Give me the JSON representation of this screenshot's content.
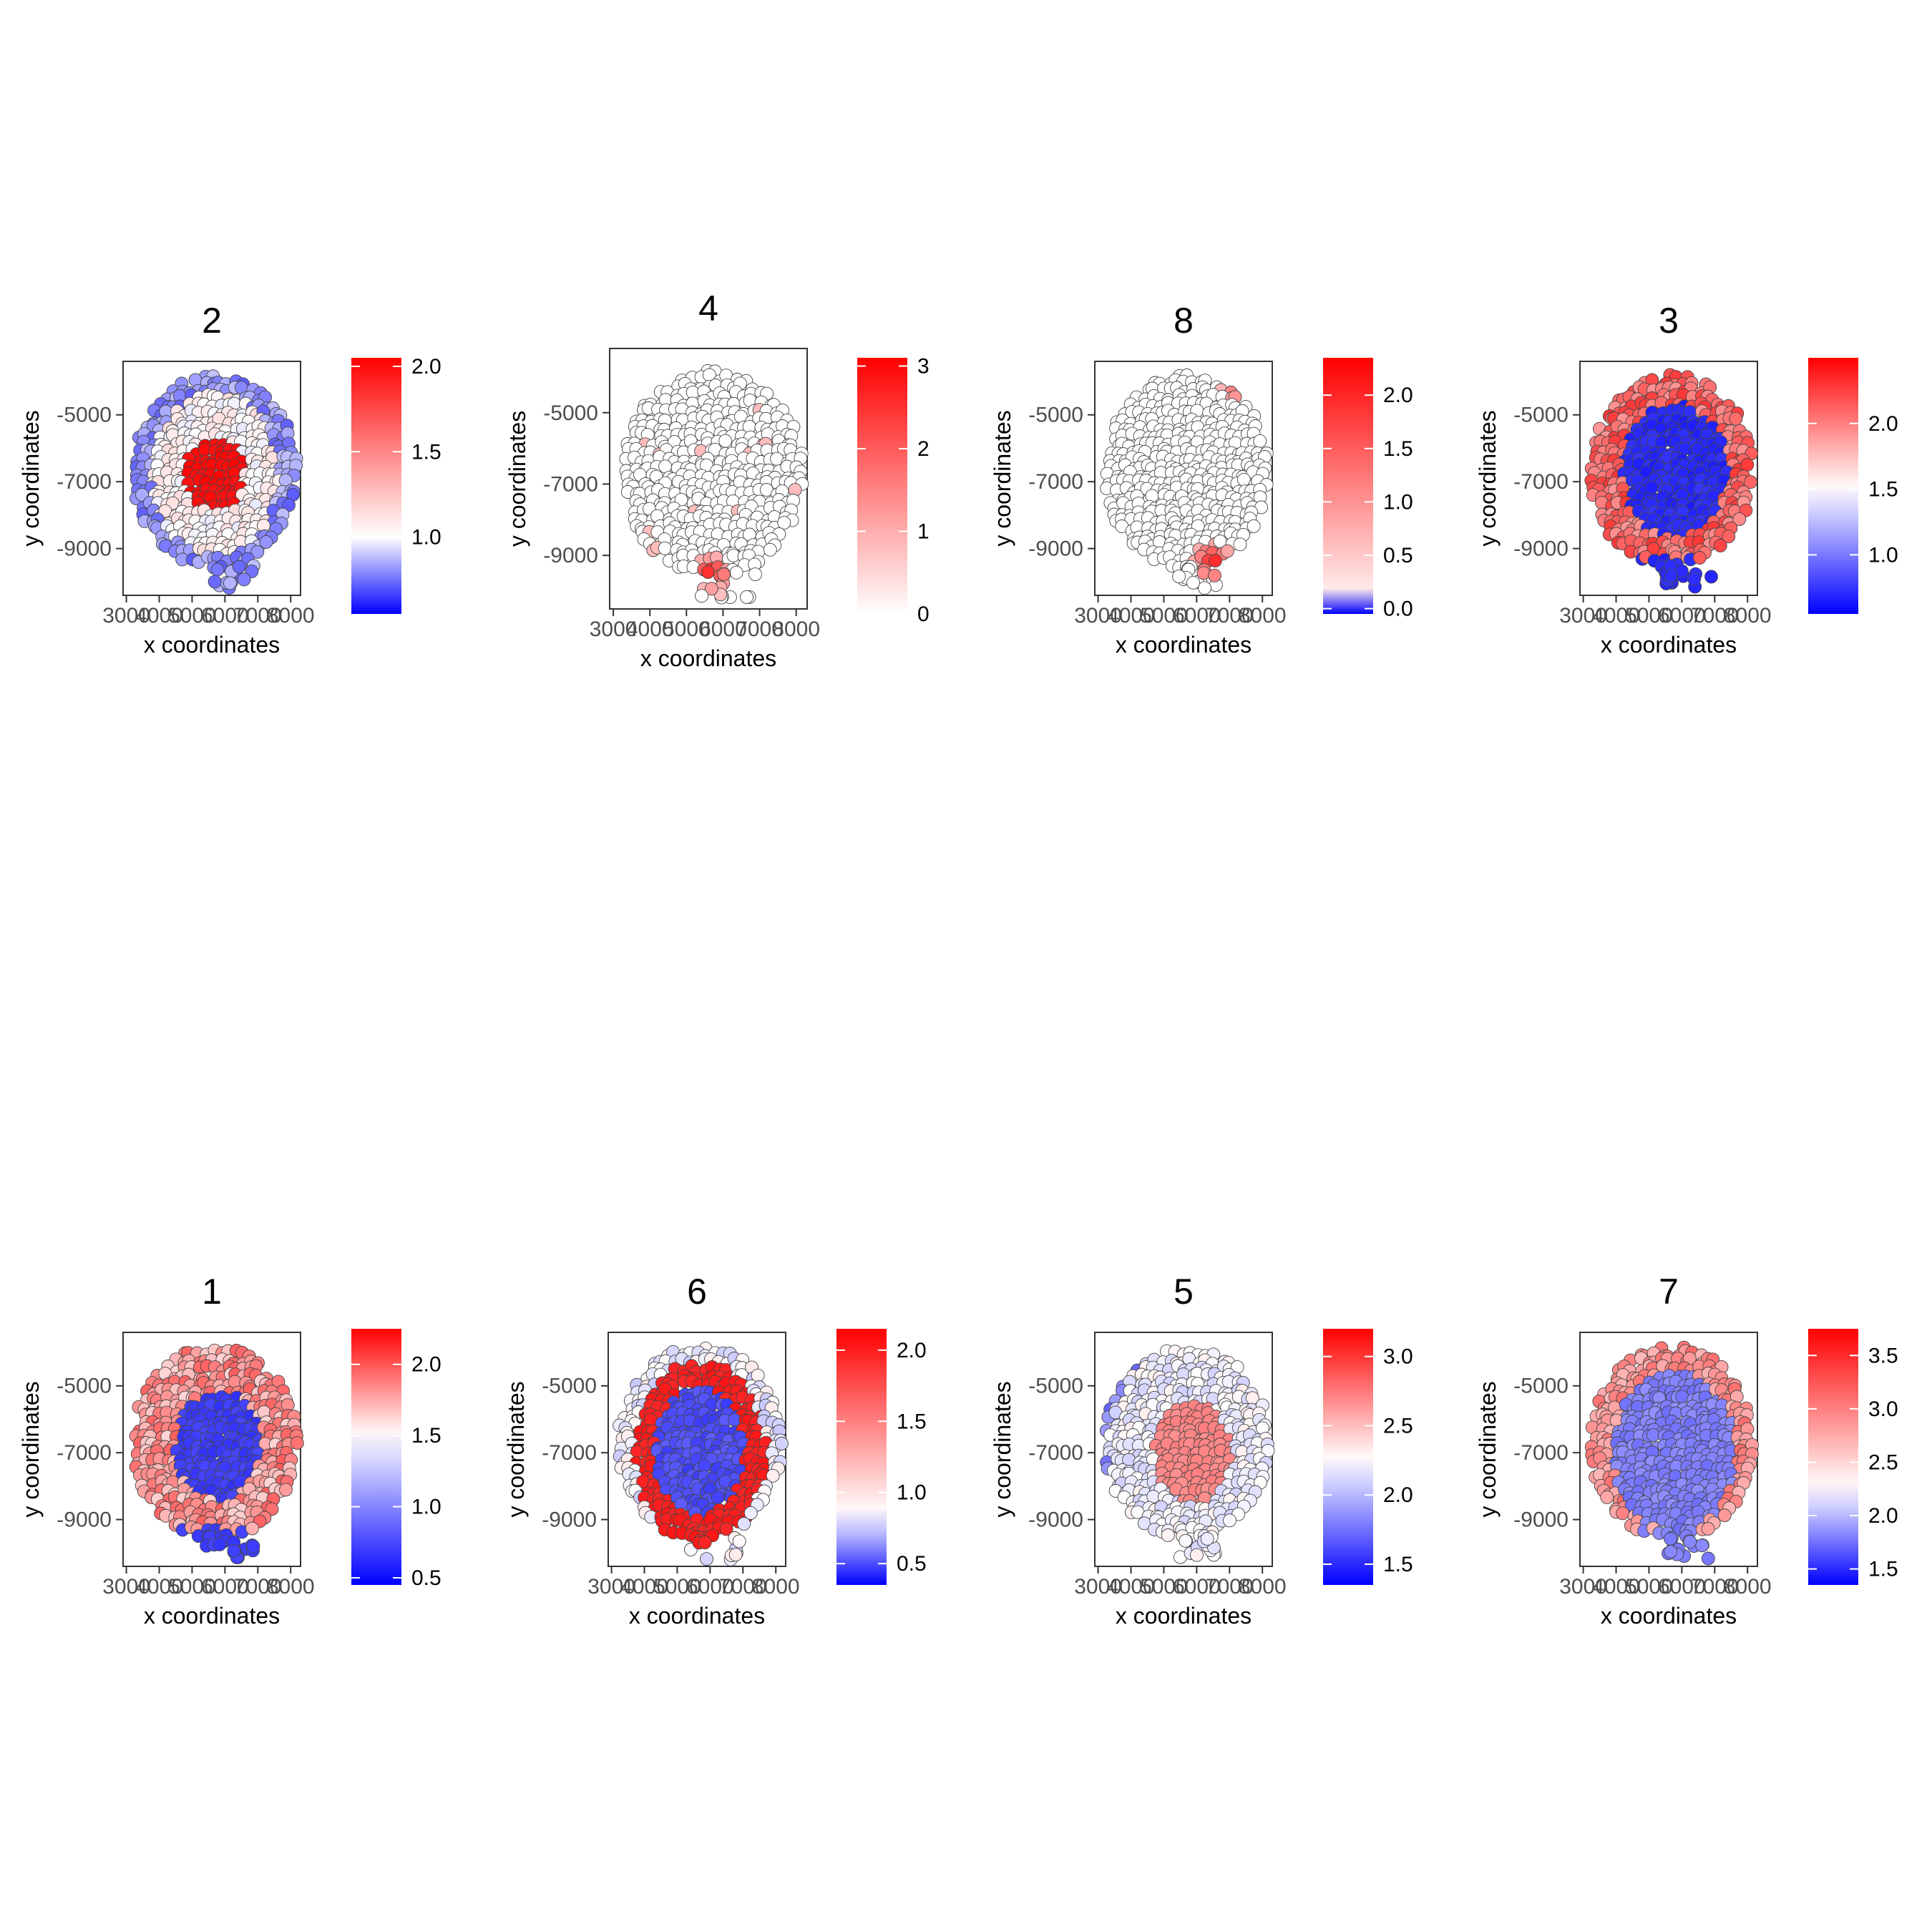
{
  "figure": {
    "panels": [
      {
        "title": "2",
        "xlabel": "x coordinates",
        "ylabel": "y coordinates",
        "xticks": [
          "3000",
          "4000",
          "5000",
          "6000",
          "7000",
          "8000"
        ],
        "yticks": [
          "-5000",
          "-7000",
          "-9000"
        ],
        "legend_ticks": [
          "2.0",
          "1.5",
          "1.0"
        ]
      },
      {
        "title": "4",
        "xlabel": "x coordinates",
        "ylabel": "y coordinates",
        "xticks": [
          "3000",
          "4000",
          "5000",
          "6000",
          "7000",
          "8000"
        ],
        "yticks": [
          "-5000",
          "-7000",
          "-9000"
        ],
        "legend_ticks": [
          "3",
          "2",
          "1",
          "0"
        ]
      },
      {
        "title": "8",
        "xlabel": "x coordinates",
        "ylabel": "y coordinates",
        "xticks": [
          "3000",
          "4000",
          "5000",
          "6000",
          "7000",
          "8000"
        ],
        "yticks": [
          "-5000",
          "-7000",
          "-9000"
        ],
        "legend_ticks": [
          "2.0",
          "1.5",
          "1.0",
          "0.5",
          "0.0"
        ]
      },
      {
        "title": "3",
        "xlabel": "x coordinates",
        "ylabel": "y coordinates",
        "xticks": [
          "3000",
          "4000",
          "5000",
          "6000",
          "7000",
          "8000"
        ],
        "yticks": [
          "-5000",
          "-7000",
          "-9000"
        ],
        "legend_ticks": [
          "2.0",
          "1.5",
          "1.0"
        ]
      },
      {
        "title": "1",
        "xlabel": "x coordinates",
        "ylabel": "y coordinates",
        "xticks": [
          "3000",
          "4000",
          "5000",
          "6000",
          "7000",
          "8000"
        ],
        "yticks": [
          "-5000",
          "-7000",
          "-9000"
        ],
        "legend_ticks": [
          "2.0",
          "1.5",
          "1.0",
          "0.5"
        ]
      },
      {
        "title": "6",
        "xlabel": "x coordinates",
        "ylabel": "y coordinates",
        "xticks": [
          "3000",
          "4000",
          "5000",
          "6000",
          "7000",
          "8000"
        ],
        "yticks": [
          "-5000",
          "-7000",
          "-9000"
        ],
        "legend_ticks": [
          "2.0",
          "1.5",
          "1.0",
          "0.5"
        ]
      },
      {
        "title": "5",
        "xlabel": "x coordinates",
        "ylabel": "y coordinates",
        "xticks": [
          "3000",
          "4000",
          "5000",
          "6000",
          "7000",
          "8000"
        ],
        "yticks": [
          "-5000",
          "-7000",
          "-9000"
        ],
        "legend_ticks": [
          "3.0",
          "2.5",
          "2.0",
          "1.5"
        ]
      },
      {
        "title": "7",
        "xlabel": "x coordinates",
        "ylabel": "y coordinates",
        "xticks": [
          "3000",
          "4000",
          "5000",
          "6000",
          "7000",
          "8000"
        ],
        "yticks": [
          "-5000",
          "-7000",
          "-9000"
        ],
        "legend_ticks": [
          "3.5",
          "3.0",
          "2.5",
          "2.0",
          "1.5"
        ]
      }
    ]
  },
  "chart_data": [
    {
      "type": "scatter",
      "title": "2",
      "xlabel": "x coordinates",
      "ylabel": "y coordinates",
      "xlim": [
        2900,
        8300
      ],
      "ylim": [
        -10400,
        -3400
      ],
      "color_scale": {
        "low": "#0000ff",
        "mid": "#ffffff",
        "high": "#ff0000",
        "range": [
          0.55,
          2.05
        ],
        "midpoint": 1.0
      },
      "pattern": "center_high",
      "center": [
        5700,
        -6800
      ],
      "inner_radius": 1500,
      "inner_value": 2.0,
      "ring_value": 1.05,
      "outer_value": 0.8
    },
    {
      "type": "scatter",
      "title": "4",
      "xlabel": "x coordinates",
      "ylabel": "y coordinates",
      "xlim": [
        2900,
        8300
      ],
      "ylim": [
        -10500,
        -3200
      ],
      "color_scale": {
        "low": "#0000ff",
        "mid": "#ffffff",
        "high": "#ff0000",
        "range": [
          0,
          3.1
        ],
        "midpoint": 0
      },
      "pattern": "bottom_hotspot",
      "hotspot": [
        5700,
        -9500
      ],
      "hotspot_value": 3.0,
      "base_value": 0
    },
    {
      "type": "scatter",
      "title": "8",
      "xlabel": "x coordinates",
      "ylabel": "y coordinates",
      "xlim": [
        2900,
        8300
      ],
      "ylim": [
        -10400,
        -3400
      ],
      "color_scale": {
        "low": "#0000ff",
        "mid": "#ffffff",
        "high": "#ff0000",
        "range": [
          -0.05,
          2.35
        ],
        "midpoint": 0
      },
      "pattern": "top_and_bottom_hotspots",
      "hotspots": [
        [
          7300,
          -4000
        ],
        [
          6500,
          -9400
        ]
      ],
      "hotspot_value": 2.1,
      "base_value": 0
    },
    {
      "type": "scatter",
      "title": "3",
      "xlabel": "x coordinates",
      "ylabel": "y coordinates",
      "xlim": [
        2900,
        8300
      ],
      "ylim": [
        -10400,
        -3400
      ],
      "color_scale": {
        "low": "#0000ff",
        "mid": "#ffffff",
        "high": "#ff0000",
        "range": [
          0.55,
          2.5
        ],
        "midpoint": 1.5
      },
      "pattern": "center_low",
      "center": [
        5800,
        -6700
      ],
      "inner_radius": 1600,
      "inner_value": 0.7,
      "ring_value": 2.1
    },
    {
      "type": "scatter",
      "title": "1",
      "xlabel": "x coordinates",
      "ylabel": "y coordinates",
      "xlim": [
        2900,
        8300
      ],
      "ylim": [
        -10400,
        -3400
      ],
      "color_scale": {
        "low": "#0000ff",
        "mid": "#ffffff",
        "high": "#ff0000",
        "range": [
          0.45,
          2.25
        ],
        "midpoint": 1.5
      },
      "pattern": "center_low",
      "center": [
        5800,
        -6800
      ],
      "inner_radius": 1300,
      "inner_value": 0.7,
      "ring_value": 1.8
    },
    {
      "type": "scatter",
      "title": "6",
      "xlabel": "x coordinates",
      "ylabel": "y coordinates",
      "xlim": [
        2900,
        8300
      ],
      "ylim": [
        -10400,
        -3400
      ],
      "color_scale": {
        "low": "#0000ff",
        "mid": "#ffffff",
        "high": "#ff0000",
        "range": [
          0.35,
          2.15
        ],
        "midpoint": 0.85
      },
      "pattern": "ring_high",
      "center": [
        5700,
        -7000
      ],
      "ring_radius": 1700,
      "ring_value": 2.0,
      "inner_value": 0.5,
      "outer_value": 0.85
    },
    {
      "type": "scatter",
      "title": "5",
      "xlabel": "x coordinates",
      "ylabel": "y coordinates",
      "xlim": [
        2900,
        8300
      ],
      "ylim": [
        -10400,
        -3400
      ],
      "color_scale": {
        "low": "#0000ff",
        "mid": "#ffffff",
        "high": "#ff0000",
        "range": [
          1.35,
          3.2
        ],
        "midpoint": 2.25
      },
      "pattern": "center_high",
      "center": [
        5900,
        -7000
      ],
      "inner_radius": 2000,
      "inner_value": 2.7,
      "ring_value": 2.2,
      "outer_value": 1.8
    },
    {
      "type": "scatter",
      "title": "7",
      "xlabel": "x coordinates",
      "ylabel": "y coordinates",
      "xlim": [
        2900,
        8300
      ],
      "ylim": [
        -10400,
        -3400
      ],
      "color_scale": {
        "low": "#0000ff",
        "mid": "#ffffff",
        "high": "#ff0000",
        "range": [
          1.35,
          3.75
        ],
        "midpoint": 2.25
      },
      "pattern": "center_low",
      "center": [
        5800,
        -7000
      ],
      "inner_radius": 1900,
      "inner_value": 1.8,
      "ring_value": 2.9
    }
  ]
}
